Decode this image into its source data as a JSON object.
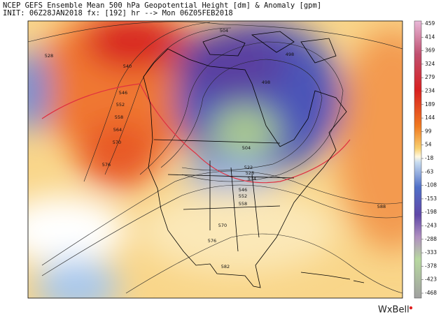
{
  "header": {
    "line1": "NCEP GEFS Ensemble Mean 500 hPa Geopotential Height [dm] & Anomaly [gpm]",
    "line2": "INIT: 06Z28JAN2018 fx: [192] hr --> Mon 06Z05FEB2018"
  },
  "colorbar": {
    "labels": [
      "459",
      "414",
      "369",
      "324",
      "279",
      "234",
      "189",
      "144",
      "99",
      "54",
      "-18",
      "-63",
      "-108",
      "-153",
      "-198",
      "-243",
      "-288",
      "-333",
      "-378",
      "-423",
      "-468"
    ]
  },
  "contour_labels": [
    "528",
    "540",
    "546",
    "552",
    "558",
    "564",
    "570",
    "576",
    "504",
    "498",
    "498",
    "504",
    "522",
    "528",
    "534",
    "546",
    "552",
    "558",
    "570",
    "576",
    "582",
    "588"
  ],
  "logo": "WxBell"
}
